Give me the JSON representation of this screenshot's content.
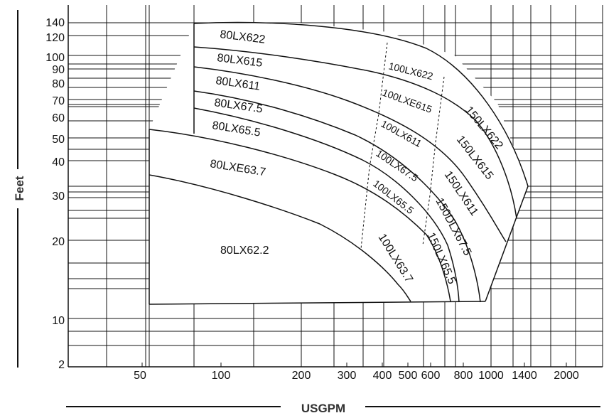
{
  "chart_data": {
    "type": "line",
    "title": "",
    "xlabel": "USGPM",
    "ylabel": "Feet",
    "x_scale": "log",
    "y_scale": "log",
    "grid": true,
    "x_tick_labels": [
      "50",
      "100",
      "200",
      "300",
      "400",
      "500",
      "600",
      "800",
      "1000",
      "1400",
      "2000"
    ],
    "y_tick_labels": [
      "140",
      "120",
      "100",
      "90",
      "80",
      "70",
      "60",
      "50",
      "40",
      "30",
      "20",
      "10",
      "2"
    ],
    "model_labels": [
      "80LX622",
      "80LX615",
      "80LX611",
      "80LX67.5",
      "80LX65.5",
      "80LXE63.7",
      "80LX62.2",
      "100LX622",
      "100LXE615",
      "100LX611",
      "100LX67.5",
      "100LX65.5",
      "100LX63.7",
      "150LX622",
      "150LX615",
      "150LX611",
      "150DLX67.5",
      "150LX65.5"
    ],
    "colors": {
      "line": "#111111",
      "grid": "#111111",
      "axis_title": "#333333",
      "background": "#ffffff"
    }
  }
}
